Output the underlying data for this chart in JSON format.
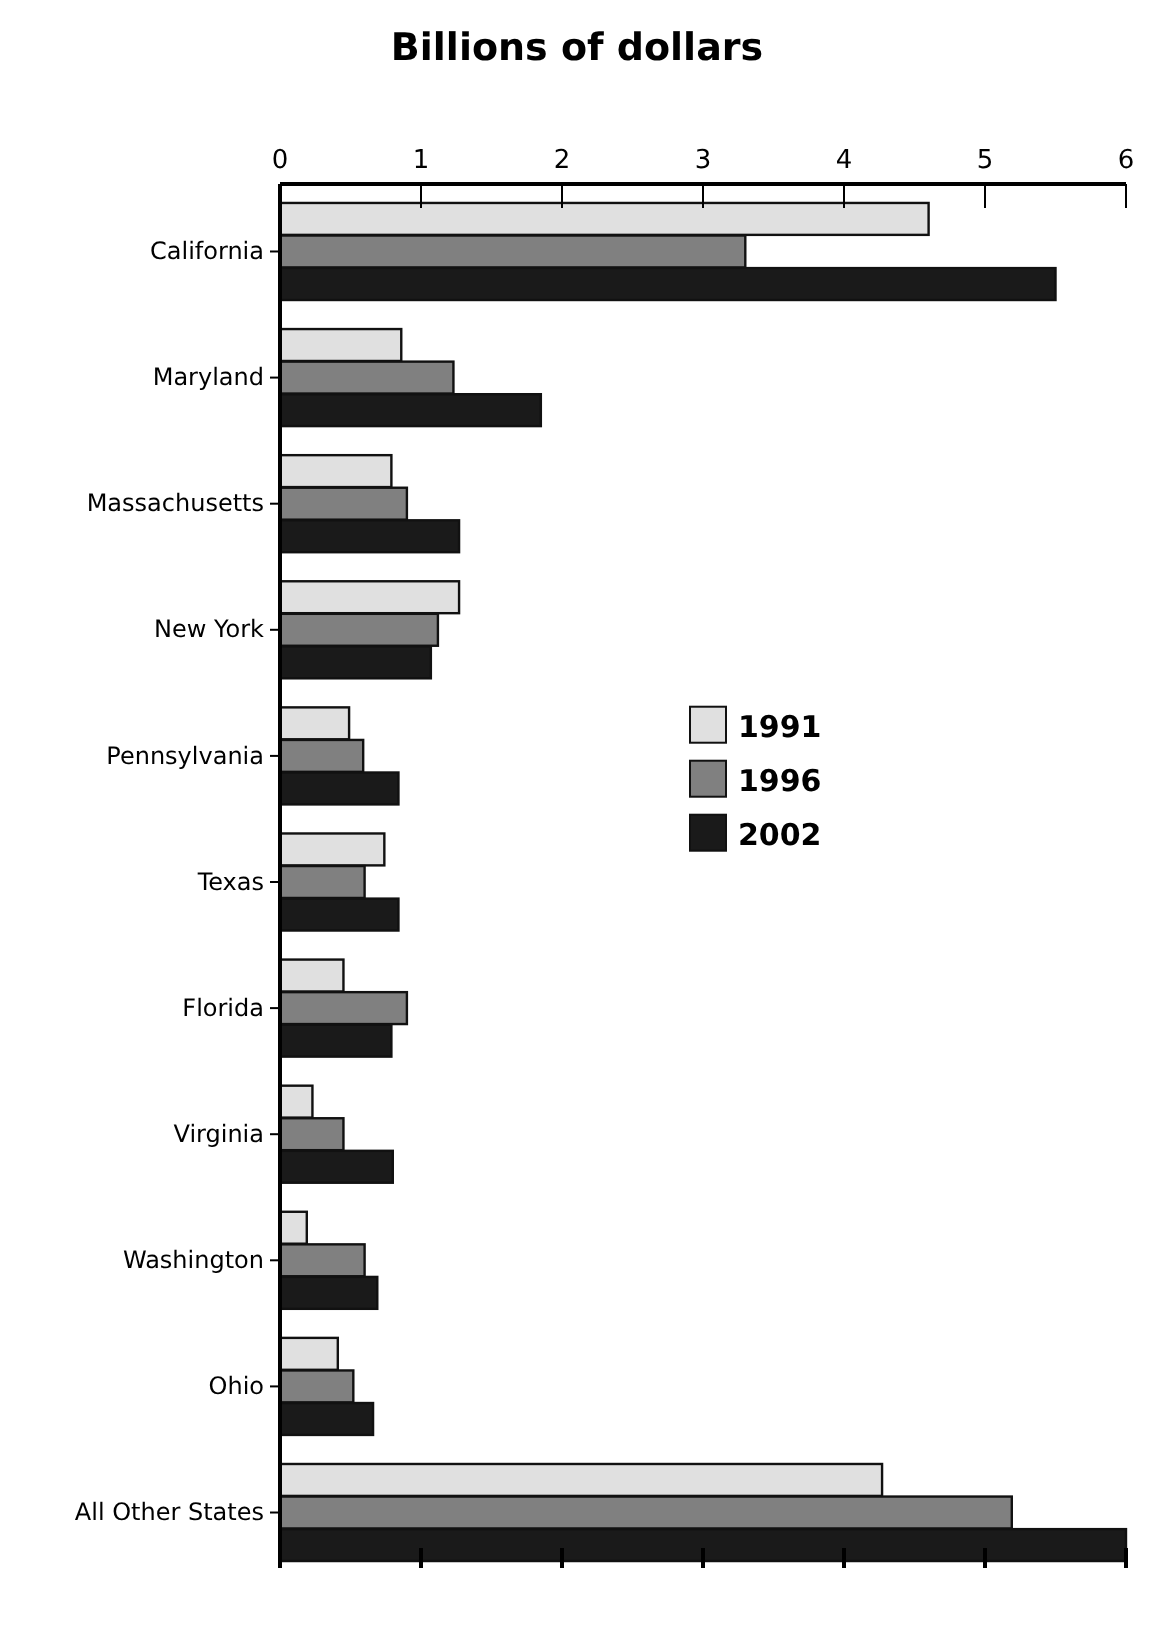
{
  "chart_data": {
    "type": "bar",
    "orientation": "horizontal",
    "title": "Billions of dollars",
    "categories": [
      "California",
      "Maryland",
      "Massachusetts",
      "New York",
      "Pennsylvania",
      "Texas",
      "Florida",
      "Virginia",
      "Washington",
      "Ohio",
      "All Other States"
    ],
    "series": [
      {
        "name": "1991",
        "color": "#e0e0e0",
        "values": [
          4.6,
          0.86,
          0.79,
          1.27,
          0.49,
          0.74,
          0.45,
          0.23,
          0.19,
          0.41,
          4.27
        ]
      },
      {
        "name": "1996",
        "color": "#808080",
        "values": [
          3.3,
          1.23,
          0.9,
          1.12,
          0.59,
          0.6,
          0.9,
          0.45,
          0.6,
          0.52,
          5.19
        ]
      },
      {
        "name": "2002",
        "color": "#1a1a1a",
        "values": [
          5.5,
          1.85,
          1.27,
          1.07,
          0.84,
          0.84,
          0.79,
          0.8,
          0.69,
          0.66,
          6
        ]
      }
    ],
    "xlim": [
      0,
      6
    ],
    "xticks": [
      0,
      1,
      2,
      3,
      4,
      5,
      6
    ],
    "legend": "right",
    "grid": false
  }
}
